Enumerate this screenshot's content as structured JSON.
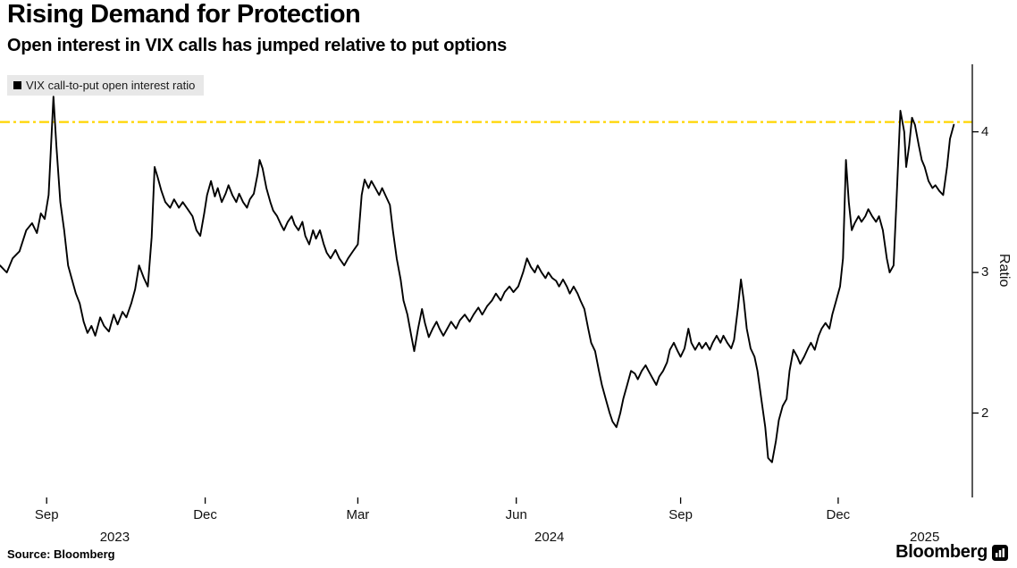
{
  "header": {
    "title": "Rising Demand for Protection",
    "subtitle": "Open interest in VIX calls has jumped relative to put options"
  },
  "legend": {
    "label": "VIX call-to-put open interest ratio",
    "swatch_color": "#000000"
  },
  "footer": {
    "source": "Source: Bloomberg",
    "brand": "Bloomberg"
  },
  "chart_data": {
    "type": "line",
    "title": "Rising Demand for Protection",
    "subtitle": "Open interest in VIX calls has jumped relative to put options",
    "series_name": "VIX call-to-put open interest ratio",
    "ylabel": "Ratio",
    "y_ticks": [
      2,
      3,
      4
    ],
    "y_range": [
      1.4,
      4.48
    ],
    "line_color": "#000000",
    "axis_color": "#000000",
    "reference_line": {
      "value": 4.07,
      "color": "#ffd500",
      "style": "dash-dot"
    },
    "legend_position": "top-left",
    "grid": false,
    "x_ticks": [
      {
        "label": "Sep",
        "pos": 0.048
      },
      {
        "label": "Dec",
        "pos": 0.211
      },
      {
        "label": "Mar",
        "pos": 0.368
      },
      {
        "label": "Jun",
        "pos": 0.531
      },
      {
        "label": "Sep",
        "pos": 0.7
      },
      {
        "label": "Dec",
        "pos": 0.862
      }
    ],
    "year_labels": [
      {
        "label": "2023",
        "pos": 0.118
      },
      {
        "label": "2024",
        "pos": 0.565
      },
      {
        "label": "2025",
        "pos": 0.951
      }
    ],
    "points": [
      [
        0.0,
        3.05
      ],
      [
        0.007,
        3.0
      ],
      [
        0.013,
        3.1
      ],
      [
        0.02,
        3.15
      ],
      [
        0.027,
        3.3
      ],
      [
        0.033,
        3.35
      ],
      [
        0.038,
        3.28
      ],
      [
        0.042,
        3.42
      ],
      [
        0.046,
        3.38
      ],
      [
        0.05,
        3.55
      ],
      [
        0.055,
        4.25
      ],
      [
        0.058,
        3.9
      ],
      [
        0.062,
        3.5
      ],
      [
        0.066,
        3.3
      ],
      [
        0.07,
        3.05
      ],
      [
        0.074,
        2.95
      ],
      [
        0.078,
        2.85
      ],
      [
        0.082,
        2.78
      ],
      [
        0.086,
        2.65
      ],
      [
        0.09,
        2.57
      ],
      [
        0.094,
        2.62
      ],
      [
        0.098,
        2.55
      ],
      [
        0.103,
        2.68
      ],
      [
        0.107,
        2.62
      ],
      [
        0.112,
        2.58
      ],
      [
        0.117,
        2.7
      ],
      [
        0.121,
        2.63
      ],
      [
        0.126,
        2.72
      ],
      [
        0.13,
        2.68
      ],
      [
        0.135,
        2.78
      ],
      [
        0.139,
        2.88
      ],
      [
        0.143,
        3.05
      ],
      [
        0.148,
        2.96
      ],
      [
        0.152,
        2.9
      ],
      [
        0.156,
        3.25
      ],
      [
        0.159,
        3.75
      ],
      [
        0.162,
        3.68
      ],
      [
        0.166,
        3.58
      ],
      [
        0.17,
        3.5
      ],
      [
        0.175,
        3.46
      ],
      [
        0.179,
        3.52
      ],
      [
        0.184,
        3.46
      ],
      [
        0.188,
        3.5
      ],
      [
        0.193,
        3.45
      ],
      [
        0.198,
        3.4
      ],
      [
        0.202,
        3.3
      ],
      [
        0.206,
        3.26
      ],
      [
        0.21,
        3.42
      ],
      [
        0.213,
        3.55
      ],
      [
        0.217,
        3.65
      ],
      [
        0.221,
        3.54
      ],
      [
        0.224,
        3.6
      ],
      [
        0.228,
        3.5
      ],
      [
        0.232,
        3.56
      ],
      [
        0.235,
        3.62
      ],
      [
        0.239,
        3.55
      ],
      [
        0.243,
        3.5
      ],
      [
        0.246,
        3.56
      ],
      [
        0.25,
        3.5
      ],
      [
        0.254,
        3.46
      ],
      [
        0.257,
        3.52
      ],
      [
        0.261,
        3.56
      ],
      [
        0.265,
        3.7
      ],
      [
        0.267,
        3.8
      ],
      [
        0.27,
        3.74
      ],
      [
        0.274,
        3.6
      ],
      [
        0.278,
        3.5
      ],
      [
        0.281,
        3.44
      ],
      [
        0.285,
        3.4
      ],
      [
        0.289,
        3.34
      ],
      [
        0.292,
        3.3
      ],
      [
        0.296,
        3.36
      ],
      [
        0.3,
        3.4
      ],
      [
        0.303,
        3.34
      ],
      [
        0.307,
        3.3
      ],
      [
        0.311,
        3.36
      ],
      [
        0.314,
        3.26
      ],
      [
        0.318,
        3.2
      ],
      [
        0.322,
        3.3
      ],
      [
        0.325,
        3.24
      ],
      [
        0.329,
        3.3
      ],
      [
        0.333,
        3.2
      ],
      [
        0.336,
        3.14
      ],
      [
        0.34,
        3.1
      ],
      [
        0.345,
        3.16
      ],
      [
        0.349,
        3.1
      ],
      [
        0.354,
        3.05
      ],
      [
        0.358,
        3.1
      ],
      [
        0.363,
        3.15
      ],
      [
        0.368,
        3.2
      ],
      [
        0.372,
        3.55
      ],
      [
        0.375,
        3.66
      ],
      [
        0.379,
        3.6
      ],
      [
        0.382,
        3.65
      ],
      [
        0.386,
        3.6
      ],
      [
        0.39,
        3.55
      ],
      [
        0.393,
        3.6
      ],
      [
        0.397,
        3.54
      ],
      [
        0.401,
        3.48
      ],
      [
        0.404,
        3.3
      ],
      [
        0.408,
        3.1
      ],
      [
        0.412,
        2.95
      ],
      [
        0.415,
        2.8
      ],
      [
        0.419,
        2.7
      ],
      [
        0.423,
        2.55
      ],
      [
        0.426,
        2.44
      ],
      [
        0.43,
        2.6
      ],
      [
        0.434,
        2.74
      ],
      [
        0.437,
        2.64
      ],
      [
        0.441,
        2.54
      ],
      [
        0.445,
        2.6
      ],
      [
        0.449,
        2.65
      ],
      [
        0.452,
        2.6
      ],
      [
        0.456,
        2.55
      ],
      [
        0.46,
        2.6
      ],
      [
        0.464,
        2.65
      ],
      [
        0.469,
        2.6
      ],
      [
        0.473,
        2.66
      ],
      [
        0.478,
        2.7
      ],
      [
        0.483,
        2.65
      ],
      [
        0.487,
        2.7
      ],
      [
        0.492,
        2.75
      ],
      [
        0.496,
        2.7
      ],
      [
        0.501,
        2.76
      ],
      [
        0.506,
        2.8
      ],
      [
        0.51,
        2.85
      ],
      [
        0.515,
        2.8
      ],
      [
        0.519,
        2.86
      ],
      [
        0.524,
        2.9
      ],
      [
        0.528,
        2.86
      ],
      [
        0.533,
        2.9
      ],
      [
        0.538,
        3.0
      ],
      [
        0.542,
        3.1
      ],
      [
        0.546,
        3.04
      ],
      [
        0.55,
        3.0
      ],
      [
        0.553,
        3.05
      ],
      [
        0.557,
        3.0
      ],
      [
        0.561,
        2.96
      ],
      [
        0.564,
        3.0
      ],
      [
        0.568,
        2.96
      ],
      [
        0.572,
        2.94
      ],
      [
        0.575,
        2.9
      ],
      [
        0.579,
        2.95
      ],
      [
        0.583,
        2.9
      ],
      [
        0.586,
        2.85
      ],
      [
        0.59,
        2.9
      ],
      [
        0.594,
        2.85
      ],
      [
        0.597,
        2.8
      ],
      [
        0.601,
        2.74
      ],
      [
        0.605,
        2.6
      ],
      [
        0.608,
        2.5
      ],
      [
        0.612,
        2.44
      ],
      [
        0.616,
        2.3
      ],
      [
        0.619,
        2.2
      ],
      [
        0.623,
        2.1
      ],
      [
        0.627,
        2.0
      ],
      [
        0.63,
        1.94
      ],
      [
        0.634,
        1.9
      ],
      [
        0.638,
        2.0
      ],
      [
        0.641,
        2.1
      ],
      [
        0.645,
        2.2
      ],
      [
        0.649,
        2.3
      ],
      [
        0.653,
        2.28
      ],
      [
        0.656,
        2.24
      ],
      [
        0.66,
        2.3
      ],
      [
        0.664,
        2.34
      ],
      [
        0.667,
        2.3
      ],
      [
        0.671,
        2.25
      ],
      [
        0.675,
        2.2
      ],
      [
        0.678,
        2.26
      ],
      [
        0.682,
        2.3
      ],
      [
        0.686,
        2.36
      ],
      [
        0.689,
        2.45
      ],
      [
        0.693,
        2.5
      ],
      [
        0.697,
        2.44
      ],
      [
        0.7,
        2.4
      ],
      [
        0.704,
        2.46
      ],
      [
        0.708,
        2.6
      ],
      [
        0.711,
        2.5
      ],
      [
        0.715,
        2.45
      ],
      [
        0.719,
        2.5
      ],
      [
        0.722,
        2.46
      ],
      [
        0.726,
        2.5
      ],
      [
        0.73,
        2.45
      ],
      [
        0.733,
        2.5
      ],
      [
        0.737,
        2.55
      ],
      [
        0.741,
        2.5
      ],
      [
        0.744,
        2.55
      ],
      [
        0.748,
        2.5
      ],
      [
        0.752,
        2.46
      ],
      [
        0.755,
        2.52
      ],
      [
        0.759,
        2.75
      ],
      [
        0.762,
        2.95
      ],
      [
        0.765,
        2.8
      ],
      [
        0.768,
        2.6
      ],
      [
        0.772,
        2.46
      ],
      [
        0.776,
        2.4
      ],
      [
        0.779,
        2.3
      ],
      [
        0.783,
        2.1
      ],
      [
        0.787,
        1.9
      ],
      [
        0.79,
        1.68
      ],
      [
        0.794,
        1.65
      ],
      [
        0.798,
        1.8
      ],
      [
        0.801,
        1.95
      ],
      [
        0.805,
        2.05
      ],
      [
        0.809,
        2.1
      ],
      [
        0.812,
        2.3
      ],
      [
        0.816,
        2.45
      ],
      [
        0.82,
        2.4
      ],
      [
        0.823,
        2.35
      ],
      [
        0.827,
        2.4
      ],
      [
        0.831,
        2.46
      ],
      [
        0.834,
        2.5
      ],
      [
        0.838,
        2.45
      ],
      [
        0.842,
        2.55
      ],
      [
        0.845,
        2.6
      ],
      [
        0.849,
        2.64
      ],
      [
        0.853,
        2.6
      ],
      [
        0.856,
        2.7
      ],
      [
        0.86,
        2.8
      ],
      [
        0.864,
        2.9
      ],
      [
        0.867,
        3.1
      ],
      [
        0.87,
        3.8
      ],
      [
        0.873,
        3.5
      ],
      [
        0.876,
        3.3
      ],
      [
        0.879,
        3.35
      ],
      [
        0.883,
        3.4
      ],
      [
        0.886,
        3.36
      ],
      [
        0.89,
        3.4
      ],
      [
        0.893,
        3.45
      ],
      [
        0.897,
        3.4
      ],
      [
        0.901,
        3.36
      ],
      [
        0.904,
        3.4
      ],
      [
        0.908,
        3.3
      ],
      [
        0.912,
        3.1
      ],
      [
        0.915,
        3.0
      ],
      [
        0.919,
        3.05
      ],
      [
        0.922,
        3.5
      ],
      [
        0.926,
        4.15
      ],
      [
        0.93,
        4.0
      ],
      [
        0.932,
        3.75
      ],
      [
        0.935,
        3.9
      ],
      [
        0.938,
        4.1
      ],
      [
        0.941,
        4.05
      ],
      [
        0.945,
        3.9
      ],
      [
        0.948,
        3.8
      ],
      [
        0.951,
        3.75
      ],
      [
        0.955,
        3.65
      ],
      [
        0.959,
        3.6
      ],
      [
        0.962,
        3.62
      ],
      [
        0.966,
        3.58
      ],
      [
        0.97,
        3.55
      ],
      [
        0.974,
        3.75
      ],
      [
        0.977,
        3.95
      ],
      [
        0.981,
        4.05
      ]
    ]
  }
}
